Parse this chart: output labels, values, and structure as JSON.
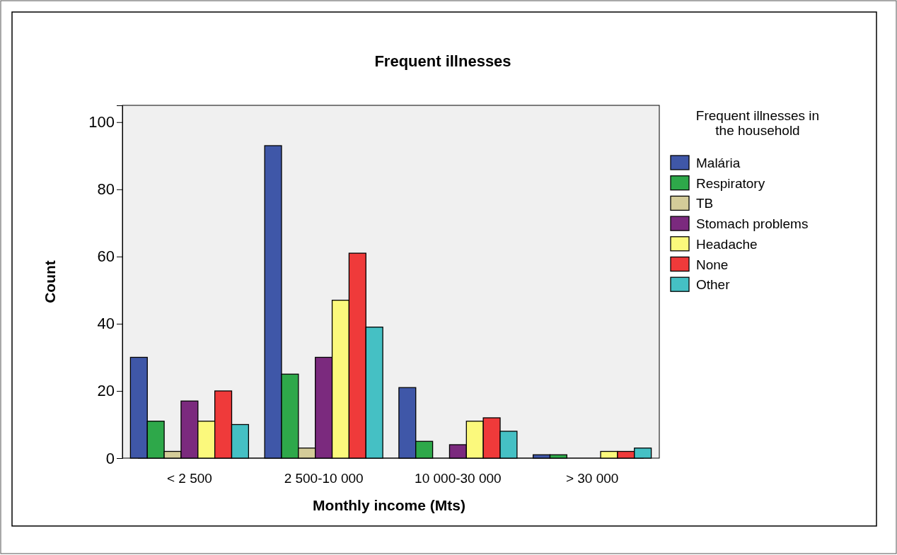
{
  "chart_data": {
    "type": "bar",
    "title": "Frequent illnesses",
    "xlabel": "Monthly income (Mts)",
    "ylabel": "Count",
    "legend_title": "Frequent illnesses in the household",
    "categories": [
      "< 2 500",
      "2 500-10 000",
      "10 000-30 000",
      "> 30 000"
    ],
    "series": [
      {
        "name": "Malária",
        "color": "#3f57a8",
        "values": [
          30,
          93,
          21,
          1
        ]
      },
      {
        "name": "Respiratory",
        "color": "#2ea84a",
        "values": [
          11,
          25,
          5,
          1
        ]
      },
      {
        "name": "TB",
        "color": "#d4cc99",
        "values": [
          2,
          3,
          0,
          0
        ]
      },
      {
        "name": "Stomach problems",
        "color": "#7b2a7e",
        "values": [
          17,
          30,
          4,
          0
        ]
      },
      {
        "name": "Headache",
        "color": "#fbf97c",
        "values": [
          11,
          47,
          11,
          2
        ]
      },
      {
        "name": "None",
        "color": "#ef3a3a",
        "values": [
          20,
          61,
          12,
          2
        ]
      },
      {
        "name": "Other",
        "color": "#45c0c4",
        "values": [
          10,
          39,
          8,
          3
        ]
      }
    ],
    "ylim": [
      0,
      105
    ],
    "yticks": [
      0,
      20,
      40,
      60,
      80,
      100
    ],
    "grid": false,
    "legend": "right"
  }
}
